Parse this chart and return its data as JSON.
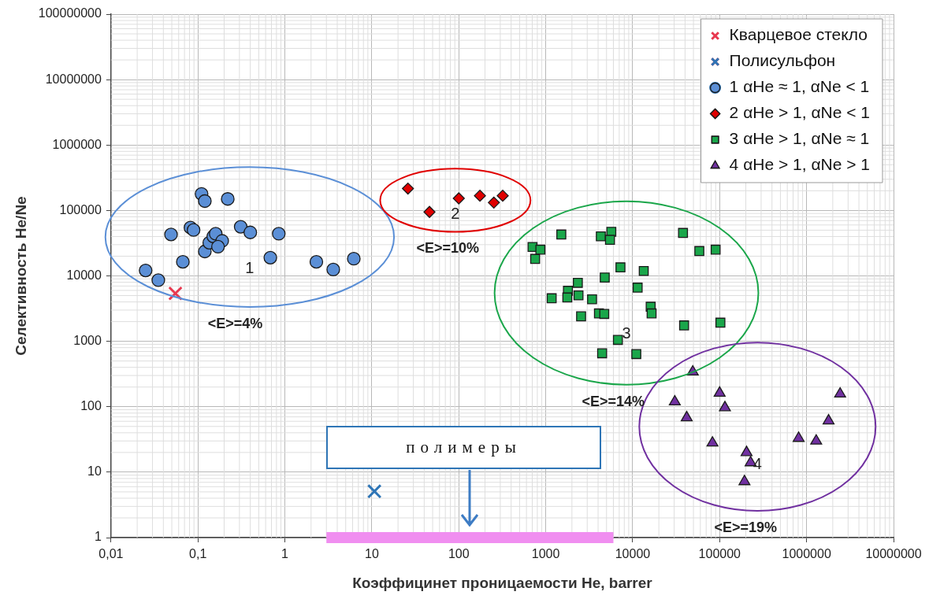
{
  "chart_data": {
    "type": "scatter",
    "xlabel": "Коэффицинет проницаемости He, barrer",
    "ylabel": "Селективность He/Ne",
    "log": "xy",
    "grid": true,
    "legend": "top right",
    "xlim": [
      0.01,
      10000000
    ],
    "ylim": [
      1,
      100000000
    ],
    "xticks": [
      {
        "value": 0.01,
        "label": "0,01"
      },
      {
        "value": 0.1,
        "label": "0,1"
      },
      1,
      10,
      100,
      1000,
      10000,
      100000,
      1000000,
      10000000
    ],
    "yticks": [
      1,
      10,
      100,
      1000,
      10000,
      100000,
      1000000,
      10000000,
      100000000
    ],
    "series": [
      {
        "name": "Кварцевое стекло",
        "color": "#e8384f",
        "marker": "cross",
        "x": [
          0.055
        ],
        "values": [
          5400
        ]
      },
      {
        "name": "Полисульфон",
        "color": "#2e75b6",
        "marker": "cross",
        "x": [
          10.7
        ],
        "values": [
          5.1
        ]
      },
      {
        "name": "1 αHe ≈ 1, αNe < 1",
        "color": "#5b8fd6",
        "marker": "circle",
        "x": [
          0.025,
          0.035,
          0.049,
          0.067,
          0.082,
          0.089,
          0.11,
          0.12,
          0.12,
          0.135,
          0.15,
          0.16,
          0.19,
          0.17,
          0.22,
          0.31,
          0.4,
          0.68,
          0.85,
          2.3,
          3.6,
          6.2
        ],
        "values": [
          12100,
          8600,
          42900,
          16400,
          54700,
          50300,
          179000,
          139000,
          23600,
          32100,
          40200,
          44100,
          34300,
          27900,
          150000,
          56300,
          46200,
          19000,
          44100,
          16400,
          12500,
          18300
        ]
      },
      {
        "name": "2 αHe > 1, αNe < 1",
        "color": "#e00000",
        "marker": "diamond",
        "x": [
          26,
          46,
          100,
          175,
          253,
          320
        ],
        "values": [
          216000,
          95000,
          153000,
          168000,
          132000,
          168000
        ]
      },
      {
        "name": "3 αHe > 1, αNe ≈ 1",
        "color": "#1aa64a",
        "marker": "square",
        "x": [
          705,
          867,
          755,
          1510,
          4300,
          5680,
          5480,
          37900,
          58400,
          89900,
          7230,
          13400,
          4770,
          11400,
          2340,
          1800,
          1170,
          1770,
          2380,
          3410,
          2550,
          4090,
          4710,
          16100,
          16500,
          39000,
          102000,
          6760,
          4450,
          11000
        ],
        "values": [
          27700,
          25200,
          18200,
          42900,
          40200,
          47200,
          35600,
          45400,
          24000,
          25200,
          13500,
          11900,
          9430,
          6620,
          7830,
          5920,
          4550,
          4680,
          5040,
          4390,
          2410,
          2670,
          2620,
          3380,
          2670,
          1750,
          1930,
          1050,
          656,
          638
        ]
      },
      {
        "name": "4 αHe > 1, αNe > 1",
        "color": "#7030a0",
        "marker": "triangle",
        "x": [
          49100,
          30500,
          100000,
          115000,
          41800,
          82700,
          204000,
          227000,
          193000,
          810000,
          1290000,
          1790000,
          2430000
        ],
        "values": [
          341,
          119,
          162,
          97,
          68,
          28,
          20,
          14,
          7.2,
          33,
          30,
          61,
          157
        ]
      },
      {
        "name": "полимеры",
        "type": "line",
        "color": "#f08ef0",
        "marker": "none",
        "line_style": "solid",
        "x": [
          3,
          6000
        ],
        "values": [
          1,
          1
        ]
      }
    ],
    "annotations": [
      "1",
      "2",
      "3",
      "4",
      "<E>=4%",
      "<E>=10%",
      "<E>=14%",
      "<E>=19%"
    ]
  }
}
